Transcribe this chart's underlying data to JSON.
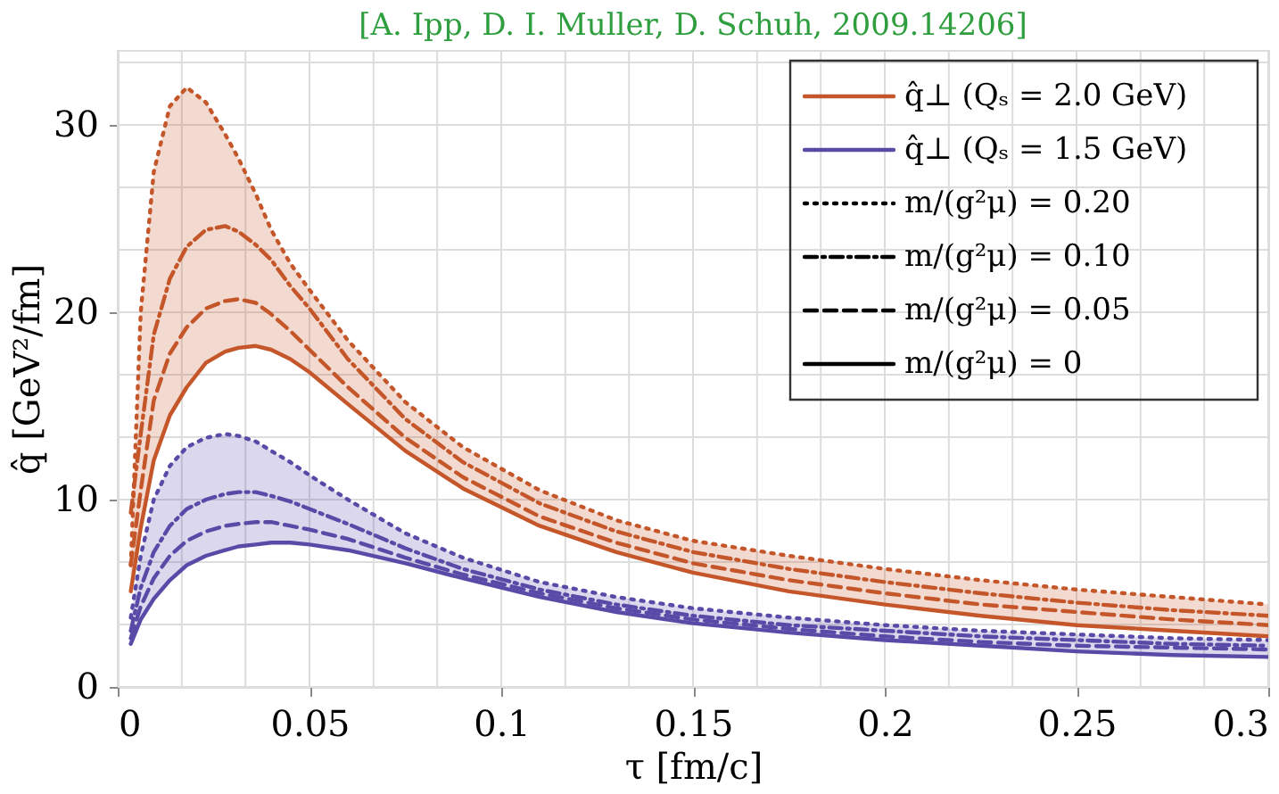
{
  "chart_data": {
    "type": "line",
    "title": "[A. Ipp, D. I. Muller, D. Schuh, 2009.14206]",
    "xlabel": "τ [fm/c]",
    "ylabel": "q̂ [GeV²/fm]",
    "x": [
      0.0034,
      0.006,
      0.0094,
      0.0136,
      0.018,
      0.023,
      0.028,
      0.0315,
      0.036,
      0.04,
      0.045,
      0.05,
      0.06,
      0.075,
      0.09,
      0.11,
      0.13,
      0.15,
      0.175,
      0.2,
      0.225,
      0.25,
      0.275,
      0.3
    ],
    "xlim": [
      0,
      0.3
    ],
    "ylim": [
      0,
      34
    ],
    "xticks": [
      0,
      {
        "value": 0.0167,
        "label": null
      },
      {
        "value": 0.0333,
        "label": null
      },
      0.05,
      {
        "value": 0.0667,
        "label": null
      },
      {
        "value": 0.0833,
        "label": null
      },
      0.1,
      {
        "value": 0.1167,
        "label": null
      },
      {
        "value": 0.1333,
        "label": null
      },
      0.15,
      {
        "value": 0.1667,
        "label": null
      },
      {
        "value": 0.1833,
        "label": null
      },
      0.2,
      {
        "value": 0.2167,
        "label": null
      },
      {
        "value": 0.2333,
        "label": null
      },
      0.25,
      {
        "value": 0.2667,
        "label": null
      },
      {
        "value": 0.2833,
        "label": null
      },
      0.3
    ],
    "yticks": [
      0,
      {
        "value": 3.33,
        "label": null
      },
      {
        "value": 6.67,
        "label": null
      },
      10,
      {
        "value": 13.33,
        "label": null
      },
      {
        "value": 16.67,
        "label": null
      },
      20,
      {
        "value": 23.33,
        "label": null
      },
      {
        "value": 26.67,
        "label": null
      },
      30,
      {
        "value": 33.33,
        "label": null
      }
    ],
    "grid": true,
    "legend": "top right",
    "series": [
      {
        "color": "#c4562a",
        "line_style": "dotted",
        "values": [
          6.5,
          20,
          27.5,
          31,
          32,
          31.2,
          29.5,
          28.2,
          26.3,
          24.4,
          22.6,
          21.2,
          18.5,
          15.2,
          12.8,
          10.5,
          8.9,
          7.8,
          7.0,
          6.3,
          5.7,
          5.2,
          4.8,
          4.4
        ]
      },
      {
        "color": "#c4562a",
        "line_style": "dashdot",
        "values": [
          9.3,
          13.5,
          18.8,
          21.8,
          23.5,
          24.4,
          24.6,
          24.3,
          23.6,
          22.8,
          21.4,
          20.2,
          17.5,
          14.3,
          12.0,
          9.8,
          8.3,
          7.2,
          6.3,
          5.6,
          5.0,
          4.5,
          4.1,
          3.8
        ]
      },
      {
        "color": "#c4562a",
        "line_style": "dashed",
        "values": [
          6.5,
          10.5,
          15.3,
          17.8,
          19.2,
          20.2,
          20.6,
          20.7,
          20.5,
          19.9,
          19.0,
          18.0,
          16.0,
          13.3,
          11.2,
          9.1,
          7.7,
          6.6,
          5.7,
          5.0,
          4.4,
          4.0,
          3.6,
          3.3
        ]
      },
      {
        "name": "q̂⊥ (Qₛ = 2.0 GeV)",
        "color": "#c4562a",
        "line_style": "solid",
        "values": [
          5.1,
          8.5,
          12.1,
          14.5,
          16.0,
          17.3,
          17.9,
          18.1,
          18.2,
          18.0,
          17.5,
          16.8,
          15.1,
          12.6,
          10.6,
          8.6,
          7.2,
          6.1,
          5.1,
          4.4,
          3.8,
          3.3,
          3.0,
          2.7
        ],
        "lower": [
          5.1,
          8.5,
          12.1,
          14.5,
          16.0,
          17.3,
          17.9,
          18.1,
          18.2,
          18.0,
          17.5,
          16.8,
          15.1,
          12.6,
          10.6,
          8.6,
          7.2,
          6.1,
          5.1,
          4.4,
          3.8,
          3.3,
          3.0,
          2.7
        ],
        "upper": [
          6.5,
          20,
          27.5,
          31,
          32,
          31.2,
          29.5,
          28.2,
          26.3,
          24.4,
          22.6,
          21.2,
          18.5,
          15.2,
          12.8,
          10.5,
          8.9,
          7.8,
          7.0,
          6.3,
          5.7,
          5.2,
          4.8,
          4.4
        ]
      },
      {
        "color": "#5a4aa8",
        "line_style": "dotted",
        "values": [
          3.7,
          7.0,
          10.0,
          11.8,
          12.8,
          13.3,
          13.5,
          13.4,
          13.1,
          12.6,
          12.0,
          11.3,
          10.0,
          8.2,
          6.9,
          5.6,
          4.8,
          4.2,
          3.7,
          3.3,
          3.0,
          2.8,
          2.6,
          2.5
        ]
      },
      {
        "color": "#5a4aa8",
        "line_style": "dashdot",
        "values": [
          3.0,
          5.3,
          7.2,
          8.6,
          9.5,
          10.0,
          10.3,
          10.4,
          10.4,
          10.2,
          9.9,
          9.5,
          8.7,
          7.4,
          6.3,
          5.2,
          4.4,
          3.8,
          3.3,
          3.0,
          2.7,
          2.5,
          2.3,
          2.2
        ]
      },
      {
        "color": "#5a4aa8",
        "line_style": "dashed",
        "values": [
          2.6,
          4.3,
          5.8,
          7.0,
          7.8,
          8.3,
          8.6,
          8.7,
          8.8,
          8.8,
          8.6,
          8.4,
          7.9,
          6.9,
          6.0,
          5.0,
          4.2,
          3.6,
          3.1,
          2.7,
          2.4,
          2.2,
          2.1,
          2.0
        ]
      },
      {
        "name": "q̂⊥ (Qₛ = 1.5 GeV)",
        "color": "#5a4aa8",
        "line_style": "solid",
        "values": [
          2.3,
          3.6,
          4.7,
          5.7,
          6.5,
          7.0,
          7.3,
          7.5,
          7.6,
          7.7,
          7.7,
          7.6,
          7.3,
          6.6,
          5.8,
          4.8,
          4.0,
          3.4,
          2.9,
          2.5,
          2.2,
          1.9,
          1.7,
          1.6
        ],
        "lower": [
          2.3,
          3.6,
          4.7,
          5.7,
          6.5,
          7.0,
          7.3,
          7.5,
          7.6,
          7.7,
          7.7,
          7.6,
          7.3,
          6.6,
          5.8,
          4.8,
          4.0,
          3.4,
          2.9,
          2.5,
          2.2,
          1.9,
          1.7,
          1.6
        ],
        "upper": [
          3.7,
          7.0,
          10.0,
          11.8,
          12.8,
          13.3,
          13.5,
          13.4,
          13.1,
          12.6,
          12.0,
          11.3,
          10.0,
          8.2,
          6.9,
          5.6,
          4.8,
          4.2,
          3.7,
          3.3,
          3.0,
          2.8,
          2.6,
          2.5
        ]
      }
    ],
    "annotations": [
      "m/(g²μ) = 0.20",
      "m/(g²μ) = 0.10",
      "m/(g²μ) = 0.05",
      "m/(g²μ) = 0"
    ]
  }
}
